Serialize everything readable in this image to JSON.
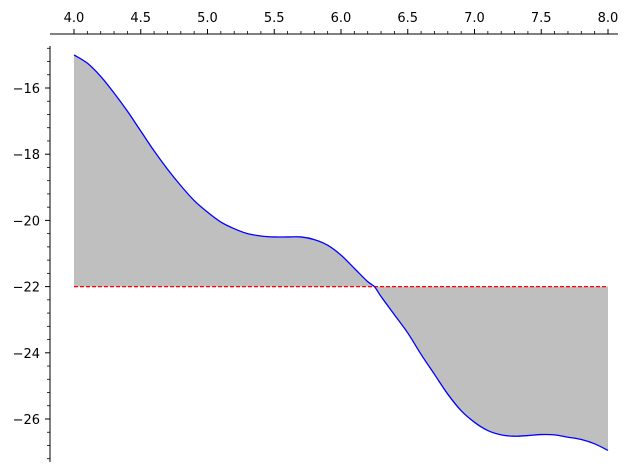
{
  "chart_data": {
    "type": "area",
    "x_axis": {
      "position": "top",
      "range": [
        4.0,
        8.0
      ],
      "ticks": [
        4.0,
        4.5,
        5.0,
        5.5,
        6.0,
        6.5,
        7.0,
        7.5,
        8.0
      ],
      "tick_labels": [
        "4.0",
        "4.5",
        "5.0",
        "5.5",
        "6.0",
        "6.5",
        "7.0",
        "7.5",
        "8.0"
      ],
      "minor_step": 0.1
    },
    "y_axis": {
      "position": "left",
      "range": [
        -27.2,
        -14.8
      ],
      "ticks": [
        -16,
        -18,
        -20,
        -22,
        -24,
        -26
      ],
      "tick_labels": [
        "−16",
        "−18",
        "−20",
        "−22",
        "−24",
        "−26"
      ],
      "minor_step": 0.4
    },
    "curve": {
      "color": "#0000ff",
      "points": [
        [
          4.0,
          -15.0
        ],
        [
          4.1,
          -15.25
        ],
        [
          4.2,
          -15.65
        ],
        [
          4.3,
          -16.15
        ],
        [
          4.4,
          -16.7
        ],
        [
          4.5,
          -17.3
        ],
        [
          4.6,
          -17.9
        ],
        [
          4.7,
          -18.45
        ],
        [
          4.8,
          -18.95
        ],
        [
          4.9,
          -19.4
        ],
        [
          5.0,
          -19.75
        ],
        [
          5.1,
          -20.05
        ],
        [
          5.2,
          -20.25
        ],
        [
          5.3,
          -20.4
        ],
        [
          5.4,
          -20.47
        ],
        [
          5.5,
          -20.5
        ],
        [
          5.6,
          -20.5
        ],
        [
          5.7,
          -20.5
        ],
        [
          5.8,
          -20.58
        ],
        [
          5.9,
          -20.75
        ],
        [
          6.0,
          -21.05
        ],
        [
          6.1,
          -21.45
        ],
        [
          6.2,
          -21.85
        ],
        [
          6.25,
          -22.0
        ],
        [
          6.3,
          -22.3
        ],
        [
          6.4,
          -22.85
        ],
        [
          6.5,
          -23.4
        ],
        [
          6.6,
          -24.05
        ],
        [
          6.7,
          -24.65
        ],
        [
          6.8,
          -25.25
        ],
        [
          6.9,
          -25.75
        ],
        [
          7.0,
          -26.1
        ],
        [
          7.1,
          -26.35
        ],
        [
          7.2,
          -26.48
        ],
        [
          7.3,
          -26.52
        ],
        [
          7.4,
          -26.5
        ],
        [
          7.5,
          -26.47
        ],
        [
          7.6,
          -26.48
        ],
        [
          7.7,
          -26.55
        ],
        [
          7.8,
          -26.62
        ],
        [
          7.9,
          -26.75
        ],
        [
          8.0,
          -26.95
        ]
      ]
    },
    "reference_line": {
      "y": -22,
      "x_range": [
        4.0,
        8.0
      ],
      "color": "#ff0000",
      "style": "dashed"
    },
    "fill": {
      "between": "curve and reference_line",
      "color": "#bfbfbf"
    },
    "grid": false,
    "legend": "none"
  }
}
